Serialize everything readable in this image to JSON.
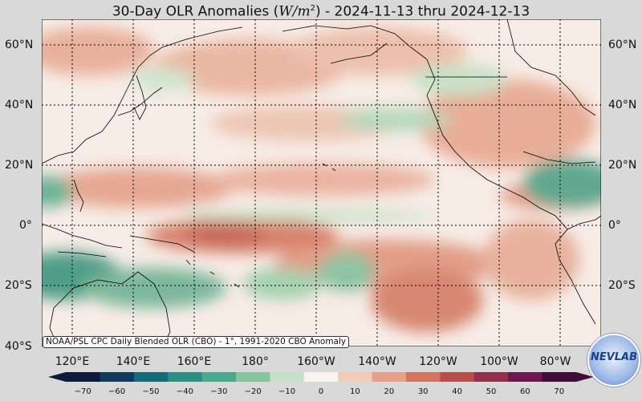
{
  "title": {
    "prefix": "30-Day OLR Anomalies (",
    "unit": "W/m",
    "unit_exp": "2",
    "suffix": ") - 2024-11-13 thru 2024-12-13"
  },
  "lat_labels": [
    "60°N",
    "40°N",
    "20°N",
    "0°",
    "20°S",
    "40°S"
  ],
  "lon_labels": [
    "120°E",
    "140°E",
    "160°E",
    "180°",
    "160°W",
    "140°W",
    "120°W",
    "100°W",
    "80°W"
  ],
  "source_note": "NOAA/PSL CPC Daily Blended OLR (CBO) - 1°, 1991-2020 CBO Anomaly",
  "colorbar": {
    "ticks": [
      "−70",
      "−60",
      "−50",
      "−40",
      "−30",
      "−20",
      "−10",
      "0",
      "10",
      "20",
      "30",
      "40",
      "50",
      "60",
      "70"
    ],
    "colors": [
      "#0d1a3a",
      "#123a5c",
      "#176b78",
      "#2b8f85",
      "#4aa88c",
      "#86c4a0",
      "#c4e0c8",
      "#f8f4f0",
      "#f2ccb8",
      "#e4a08a",
      "#d2745f",
      "#b64f4c",
      "#93314d",
      "#6b1a4f",
      "#3d0f38"
    ],
    "range": [
      -75,
      75
    ]
  },
  "logo_text": "NEVLAB",
  "colors": {
    "background": "#d9d9d9",
    "map_base": "#f7ece6",
    "warm": "#e3a38c",
    "strong_warm": "#cc6e5e",
    "cool": "#b9dcbd",
    "strong_cool": "#4d9c87"
  }
}
